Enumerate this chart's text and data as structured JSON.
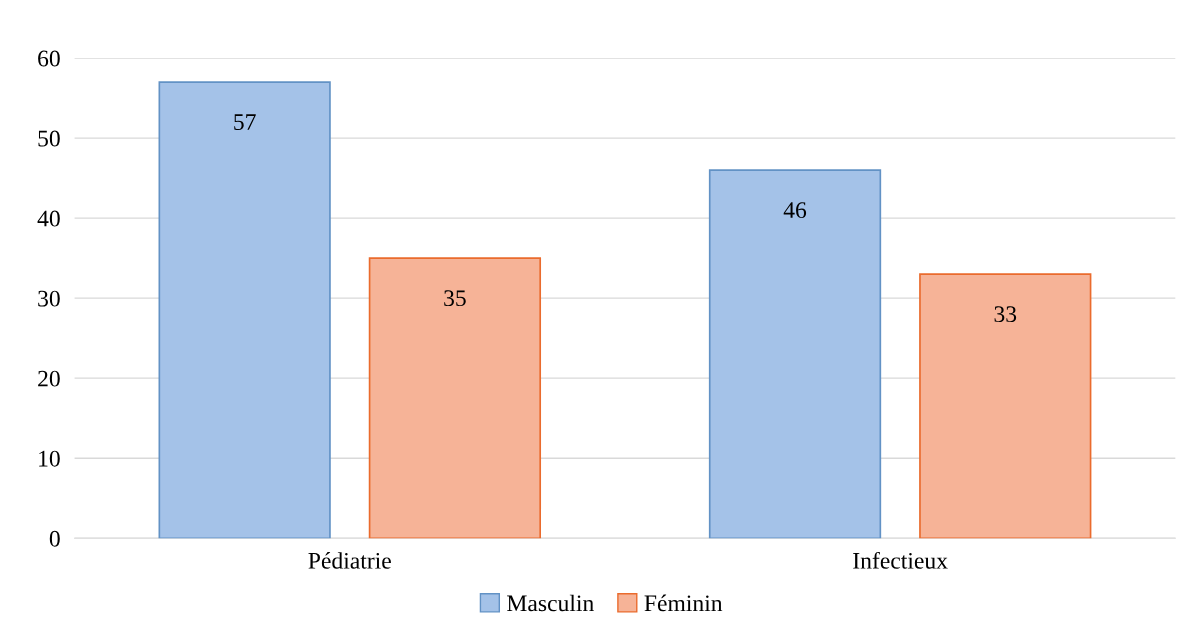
{
  "chart_data": {
    "type": "bar",
    "categories": [
      "Pédiatrie",
      "Infectieux"
    ],
    "series": [
      {
        "name": "Masculin",
        "color": "#a4c2e8",
        "values": [
          57,
          46
        ]
      },
      {
        "name": "Féminin",
        "color": "#f6b397",
        "values": [
          35,
          33
        ]
      }
    ],
    "ylim": [
      0,
      60
    ],
    "yticks": [
      0,
      10,
      20,
      30,
      40,
      50,
      60
    ],
    "grid": "y",
    "legend": "bottom",
    "data_labels": true
  }
}
